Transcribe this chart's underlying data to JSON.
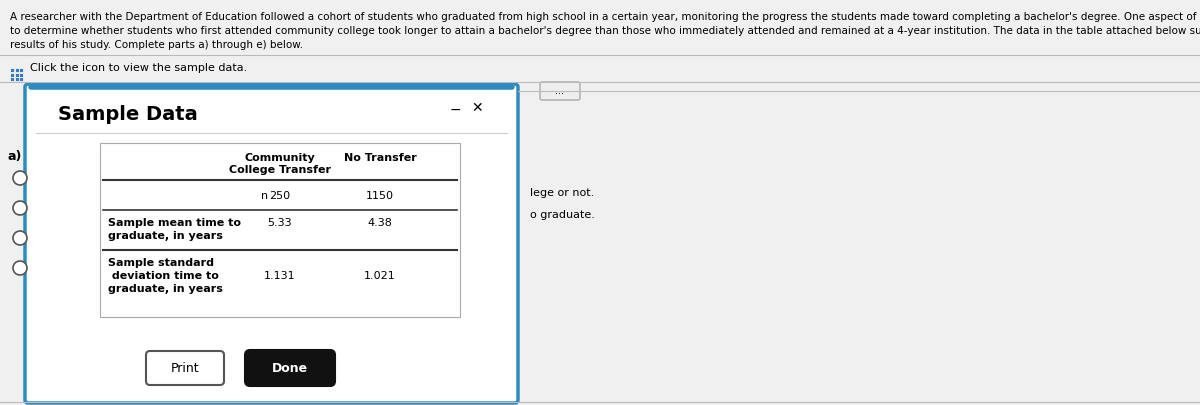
{
  "title_line1": "A researcher with the Department of Education followed a cohort of students who graduated from high school in a certain year, monitoring the progress the students made toward completing a bachelor's degree. One aspect of his research was",
  "title_line2": "to determine whether students who first attended community college took longer to attain a bachelor's degree than those who immediately attended and remained at a 4-year institution. The data in the table attached below summarize the",
  "title_line3": "results of his study. Complete parts a) through e) below.",
  "click_text": "Click the icon to view the sample data.",
  "dialog_title": "Sample Data",
  "col1_header_1": "Community",
  "col1_header_2": "College Transfer",
  "col2_header": "No Transfer",
  "row1_label": "n",
  "row2_label_1": "Sample mean time to",
  "row2_label_2": "graduate, in years",
  "row3_label_1": "Sample standard",
  "row3_label_2": " deviation time to",
  "row3_label_3": "graduate, in years",
  "row1_col1": "250",
  "row1_col2": "1150",
  "row2_col1": "5.33",
  "row2_col2": "4.38",
  "row3_col1": "1.131",
  "row3_col2": "1.021",
  "label_a": "a)",
  "right_text1": "lege or not.",
  "right_text2": "o graduate.",
  "print_btn": "Print",
  "done_btn": "Done",
  "bg_color": "#f0f0f0",
  "dialog_bg": "#ffffff",
  "dialog_border": "#2e8bc0",
  "table_border": "#aaaaaa"
}
